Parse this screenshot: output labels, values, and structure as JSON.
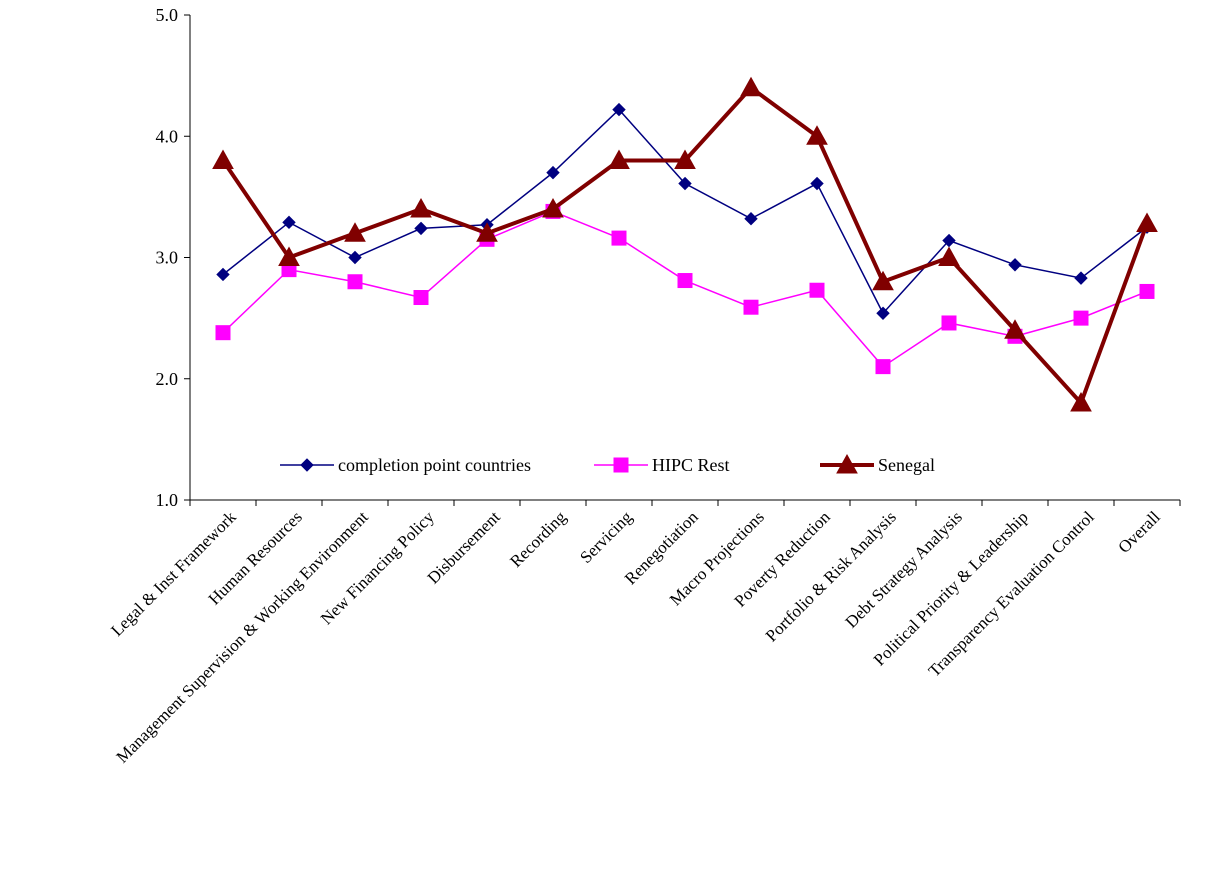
{
  "chart_data": {
    "type": "line",
    "categories": [
      "Legal & Inst Framework",
      "Human Resources",
      "Management Supervision & Working Environment",
      "New Financing Policy",
      "Disbursement",
      "Recording",
      "Servicing",
      "Renegotiation",
      "Macro Projections",
      "Poverty Reduction",
      "Portfolio & Risk Analysis",
      "Debt Strategy Analysis",
      "Political Priority & Leadership",
      "Transparency Evaluation Control",
      "Overall"
    ],
    "series": [
      {
        "name": "completion point countries",
        "color": "#000080",
        "marker": "diamond",
        "values": [
          2.86,
          3.29,
          3.0,
          3.24,
          3.27,
          3.7,
          4.22,
          3.61,
          3.32,
          3.61,
          2.54,
          3.14,
          2.94,
          2.83,
          3.25
        ]
      },
      {
        "name": "HIPC Rest",
        "color": "#FF00FF",
        "marker": "square",
        "values": [
          2.38,
          2.9,
          2.8,
          2.67,
          3.15,
          3.38,
          3.16,
          2.81,
          2.59,
          2.73,
          2.1,
          2.46,
          2.35,
          2.5,
          2.72
        ]
      },
      {
        "name": "Senegal",
        "color": "#800000",
        "marker": "triangle",
        "values": [
          3.8,
          3.0,
          3.2,
          3.4,
          3.2,
          3.4,
          3.8,
          3.8,
          4.4,
          4.0,
          2.8,
          3.0,
          2.4,
          1.8,
          3.28
        ]
      }
    ],
    "yticks": [
      "1.0",
      "2.0",
      "3.0",
      "4.0",
      "5.0"
    ],
    "ylim": [
      1,
      5
    ],
    "legend_position": "bottom-center inside plot",
    "grid": false
  }
}
